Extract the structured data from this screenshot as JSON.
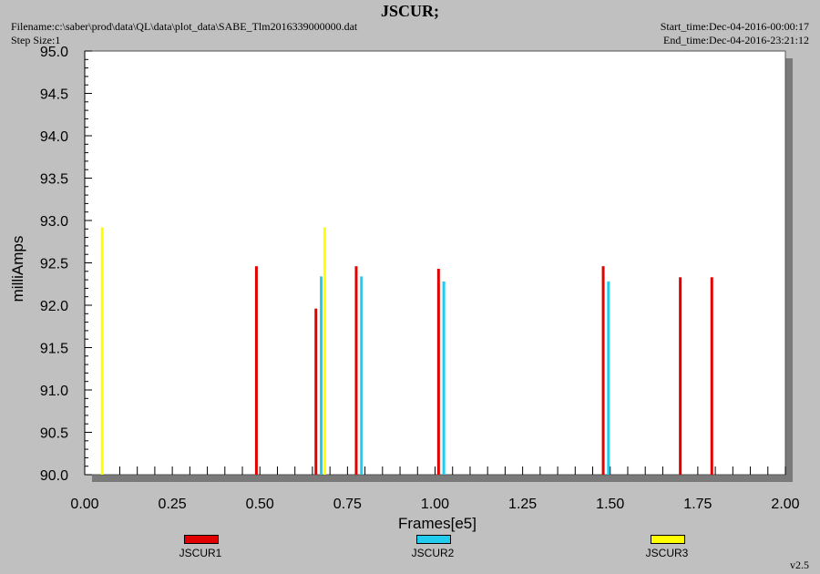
{
  "header": {
    "title": "JSCUR;",
    "filename": "Filename:c:\\saber\\prod\\data\\QL\\data\\plot_data\\SABE_Tlm2016339000000.dat",
    "step_size": "Step Size:1",
    "start_time": "Start_time:Dec-04-2016-00:00:17",
    "end_time": "End_time:Dec-04-2016-23:21:12"
  },
  "footer": {
    "version": "v2.5"
  },
  "chart_data": {
    "type": "bar",
    "title": "JSCUR;",
    "xlabel": "Frames[e5]",
    "ylabel": "milliAmps",
    "xlim": [
      0.0,
      2.0
    ],
    "ylim": [
      90.0,
      95.0
    ],
    "xticks": [
      "0.00",
      "0.25",
      "0.50",
      "0.75",
      "1.00",
      "1.25",
      "1.50",
      "1.75",
      "2.00"
    ],
    "yticks": [
      "90.0",
      "90.5",
      "91.0",
      "91.5",
      "92.0",
      "92.5",
      "93.0",
      "93.5",
      "94.0",
      "94.5",
      "95.0"
    ],
    "grid": false,
    "legend_position": "bottom",
    "series": [
      {
        "name": "JSCUR1",
        "color": "#e00000",
        "points": [
          [
            0.49,
            92.46
          ],
          [
            0.66,
            91.96
          ],
          [
            0.775,
            92.46
          ],
          [
            1.01,
            92.43
          ],
          [
            1.48,
            92.46
          ],
          [
            1.7,
            92.33
          ],
          [
            1.79,
            92.33
          ]
        ]
      },
      {
        "name": "JSCUR2",
        "color": "#22ccee",
        "points": [
          [
            0.675,
            92.34
          ],
          [
            0.79,
            92.34
          ],
          [
            1.025,
            92.28
          ],
          [
            1.495,
            92.28
          ]
        ]
      },
      {
        "name": "JSCUR3",
        "color": "#ffff00",
        "points": [
          [
            0.05,
            92.92
          ],
          [
            0.685,
            92.92
          ]
        ]
      }
    ]
  }
}
